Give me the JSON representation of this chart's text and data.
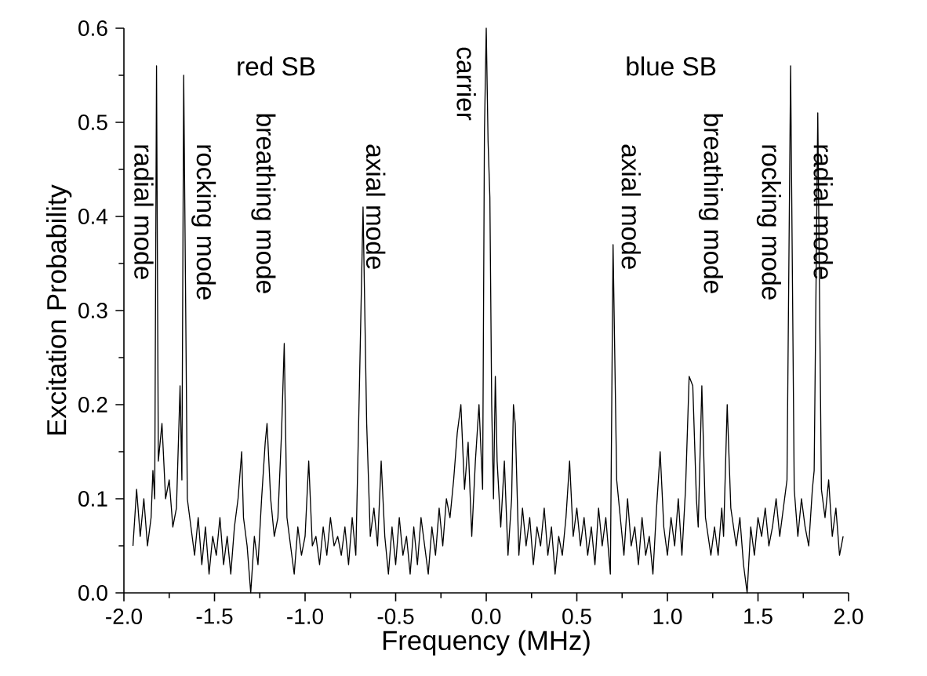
{
  "chart_data": {
    "type": "line",
    "xlabel": "Frequency (MHz)",
    "ylabel": "Excitation Probability",
    "xlim": [
      -2,
      2
    ],
    "ylim": [
      0,
      0.6
    ],
    "xticks": [
      {
        "value": -2,
        "label": "-2.0"
      },
      {
        "value": -1.5,
        "label": "-1.5"
      },
      {
        "value": -1,
        "label": "-1.0"
      },
      {
        "value": -0.5,
        "label": "-0.5"
      },
      {
        "value": 0,
        "label": "0.0"
      },
      {
        "value": 0.5,
        "label": "0.5"
      },
      {
        "value": 1,
        "label": "1.0"
      },
      {
        "value": 1.5,
        "label": "1.5"
      },
      {
        "value": 2,
        "label": "2.0"
      }
    ],
    "yticks": [
      {
        "value": 0,
        "label": "0.0"
      },
      0.1,
      0.2,
      0.3,
      0.4,
      0.5,
      0.6
    ],
    "grid": false,
    "marker": "none",
    "line_style": "solid",
    "annotations": [
      "red SB",
      "radial mode",
      "rocking mode",
      "breathing mode",
      "axial mode",
      "carrier",
      "blue SB",
      "axial mode",
      "breathing mode",
      "rocking mode",
      "radial mode"
    ],
    "series": [
      {
        "color": "#000000",
        "x": [
          -1.95,
          -1.93,
          -1.91,
          -1.89,
          -1.87,
          -1.85,
          -1.84,
          -1.83,
          -1.82,
          -1.81,
          -1.79,
          -1.77,
          -1.75,
          -1.73,
          -1.71,
          -1.69,
          -1.68,
          -1.67,
          -1.65,
          -1.63,
          -1.61,
          -1.59,
          -1.57,
          -1.55,
          -1.53,
          -1.51,
          -1.49,
          -1.47,
          -1.45,
          -1.43,
          -1.41,
          -1.39,
          -1.37,
          -1.35,
          -1.34,
          -1.32,
          -1.3,
          -1.28,
          -1.26,
          -1.24,
          -1.22,
          -1.21,
          -1.19,
          -1.17,
          -1.15,
          -1.13,
          -1.115,
          -1.1,
          -1.08,
          -1.06,
          -1.04,
          -1.02,
          -1.0,
          -0.98,
          -0.96,
          -0.94,
          -0.92,
          -0.9,
          -0.88,
          -0.86,
          -0.84,
          -0.82,
          -0.8,
          -0.78,
          -0.76,
          -0.74,
          -0.72,
          -0.7,
          -0.68,
          -0.66,
          -0.64,
          -0.62,
          -0.6,
          -0.58,
          -0.56,
          -0.54,
          -0.52,
          -0.5,
          -0.48,
          -0.46,
          -0.44,
          -0.42,
          -0.4,
          -0.38,
          -0.36,
          -0.34,
          -0.32,
          -0.3,
          -0.28,
          -0.26,
          -0.24,
          -0.22,
          -0.2,
          -0.18,
          -0.16,
          -0.14,
          -0.12,
          -0.1,
          -0.08,
          -0.06,
          -0.04,
          -0.02,
          -0.01,
          0.0,
          0.01,
          0.02,
          0.03,
          0.04,
          0.05,
          0.06,
          0.08,
          0.1,
          0.12,
          0.14,
          0.15,
          0.16,
          0.18,
          0.2,
          0.22,
          0.24,
          0.26,
          0.28,
          0.3,
          0.32,
          0.34,
          0.36,
          0.38,
          0.4,
          0.42,
          0.44,
          0.46,
          0.48,
          0.5,
          0.52,
          0.54,
          0.56,
          0.58,
          0.6,
          0.62,
          0.64,
          0.66,
          0.685,
          0.7,
          0.72,
          0.74,
          0.76,
          0.78,
          0.8,
          0.82,
          0.84,
          0.86,
          0.88,
          0.9,
          0.92,
          0.94,
          0.96,
          0.98,
          1.0,
          1.02,
          1.04,
          1.06,
          1.08,
          1.1,
          1.12,
          1.14,
          1.16,
          1.17,
          1.19,
          1.21,
          1.24,
          1.26,
          1.28,
          1.3,
          1.31,
          1.33,
          1.35,
          1.38,
          1.4,
          1.42,
          1.44,
          1.46,
          1.48,
          1.5,
          1.52,
          1.54,
          1.56,
          1.58,
          1.6,
          1.62,
          1.64,
          1.66,
          1.68,
          1.7,
          1.72,
          1.74,
          1.76,
          1.78,
          1.8,
          1.81,
          1.83,
          1.85,
          1.87,
          1.89,
          1.91,
          1.93,
          1.95,
          1.97
        ],
        "values": [
          0.05,
          0.11,
          0.06,
          0.1,
          0.05,
          0.08,
          0.13,
          0.1,
          0.56,
          0.14,
          0.18,
          0.1,
          0.12,
          0.07,
          0.09,
          0.22,
          0.12,
          0.55,
          0.1,
          0.07,
          0.04,
          0.08,
          0.03,
          0.07,
          0.02,
          0.06,
          0.04,
          0.08,
          0.03,
          0.06,
          0.02,
          0.07,
          0.1,
          0.15,
          0.08,
          0.05,
          0.0,
          0.06,
          0.03,
          0.1,
          0.16,
          0.18,
          0.1,
          0.06,
          0.08,
          0.17,
          0.265,
          0.08,
          0.05,
          0.02,
          0.07,
          0.04,
          0.06,
          0.14,
          0.05,
          0.06,
          0.03,
          0.07,
          0.04,
          0.08,
          0.05,
          0.06,
          0.04,
          0.07,
          0.03,
          0.08,
          0.04,
          0.22,
          0.41,
          0.18,
          0.06,
          0.09,
          0.05,
          0.14,
          0.06,
          0.02,
          0.07,
          0.03,
          0.08,
          0.04,
          0.06,
          0.02,
          0.07,
          0.03,
          0.08,
          0.05,
          0.02,
          0.07,
          0.04,
          0.09,
          0.05,
          0.1,
          0.08,
          0.12,
          0.17,
          0.2,
          0.11,
          0.16,
          0.06,
          0.14,
          0.2,
          0.11,
          0.49,
          0.6,
          0.48,
          0.42,
          0.2,
          0.1,
          0.23,
          0.14,
          0.07,
          0.14,
          0.04,
          0.1,
          0.2,
          0.18,
          0.04,
          0.09,
          0.05,
          0.08,
          0.03,
          0.07,
          0.05,
          0.09,
          0.04,
          0.07,
          0.02,
          0.06,
          0.04,
          0.08,
          0.14,
          0.06,
          0.09,
          0.05,
          0.08,
          0.04,
          0.07,
          0.03,
          0.09,
          0.05,
          0.08,
          0.02,
          0.37,
          0.12,
          0.08,
          0.04,
          0.1,
          0.05,
          0.07,
          0.03,
          0.08,
          0.04,
          0.06,
          0.02,
          0.09,
          0.15,
          0.07,
          0.04,
          0.08,
          0.05,
          0.1,
          0.04,
          0.11,
          0.23,
          0.22,
          0.1,
          0.07,
          0.22,
          0.08,
          0.04,
          0.07,
          0.04,
          0.09,
          0.06,
          0.2,
          0.09,
          0.05,
          0.08,
          0.03,
          0.0,
          0.07,
          0.04,
          0.08,
          0.06,
          0.09,
          0.05,
          0.07,
          0.1,
          0.06,
          0.09,
          0.12,
          0.56,
          0.11,
          0.06,
          0.1,
          0.07,
          0.05,
          0.11,
          0.13,
          0.51,
          0.11,
          0.08,
          0.12,
          0.06,
          0.09,
          0.04,
          0.06
        ]
      }
    ]
  }
}
